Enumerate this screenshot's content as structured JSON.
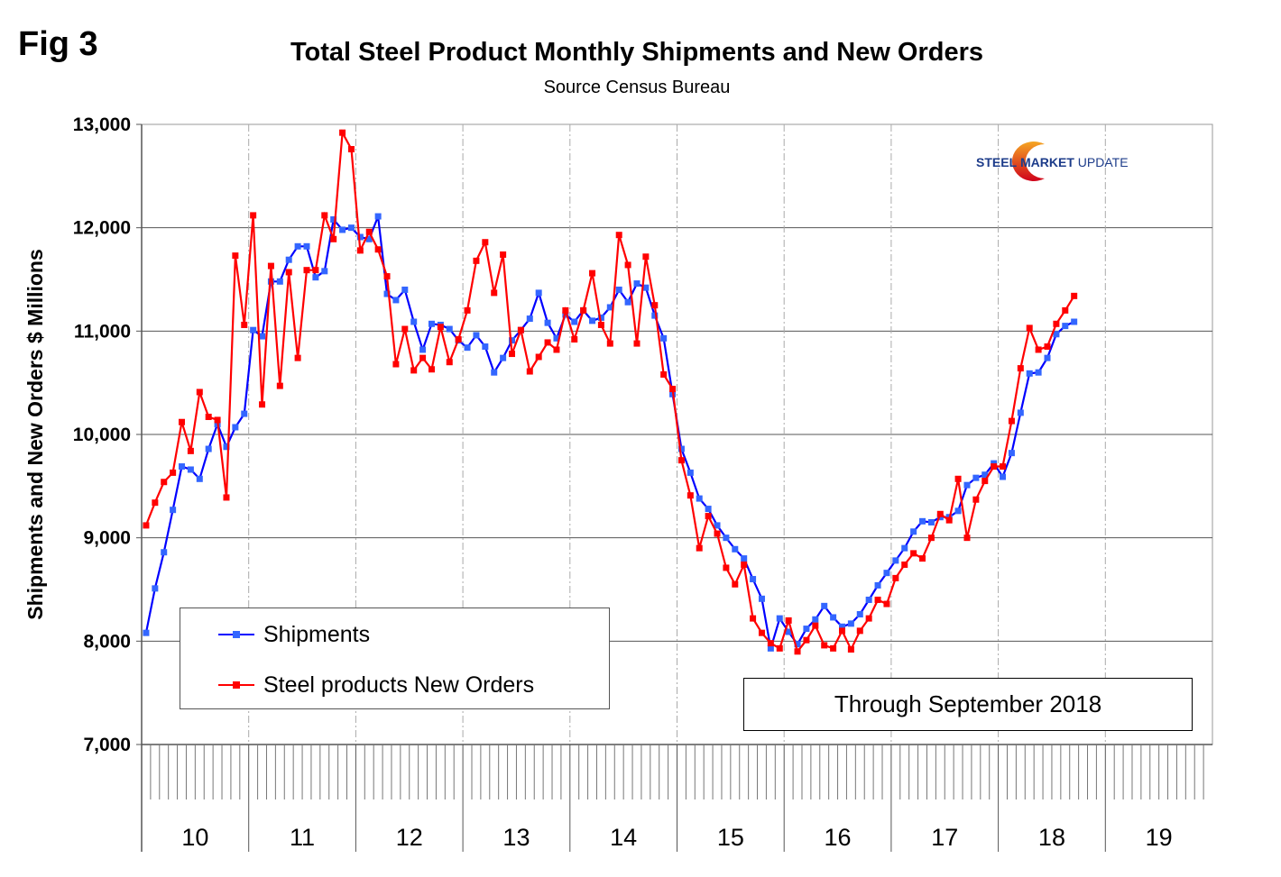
{
  "figure_label": "Fig 3",
  "source_text": "Source Census Bureau",
  "logo": {
    "word1": "STEEL",
    "word2": "MARKET",
    "word3": "UPDATE",
    "colors": {
      "text": "#1d3c8a",
      "arc_start": "#f5a623",
      "arc_end": "#d0021b"
    }
  },
  "annotation": "Through September 2018",
  "chart_data": {
    "type": "line",
    "title": "Total Steel Product Monthly Shipments and New Orders",
    "subtitle": "Source Census Bureau",
    "xlabel": "",
    "ylabel": "Shipments and New Orders $ Millions",
    "ylim": [
      7000,
      13000
    ],
    "yticks": [
      7000,
      8000,
      9000,
      10000,
      11000,
      12000,
      13000
    ],
    "ytick_labels": [
      "7,000",
      "8,000",
      "9,000",
      "10,000",
      "11,000",
      "12,000",
      "13,000"
    ],
    "x_years": [
      "10",
      "11",
      "12",
      "13",
      "14",
      "15",
      "16",
      "17",
      "18",
      "19"
    ],
    "x_start": "2010-01",
    "x_end_axis": "2019-12",
    "frequency": "monthly",
    "grid": {
      "horizontal": true,
      "vertical_year_dashed": true
    },
    "legend_position": "bottom-left",
    "series": [
      {
        "name": "Shipments",
        "color": "#0000ff",
        "marker_color": "#3366ff",
        "values": [
          8080,
          8510,
          8860,
          9270,
          9690,
          9660,
          9570,
          9860,
          10100,
          9880,
          10070,
          10200,
          11010,
          10950,
          11480,
          11480,
          11690,
          11820,
          11820,
          11520,
          11580,
          12080,
          11980,
          12000,
          11910,
          11890,
          12110,
          11360,
          11300,
          11400,
          11090,
          10820,
          11070,
          11060,
          11020,
          10910,
          10840,
          10960,
          10850,
          10600,
          10740,
          10910,
          11010,
          11120,
          11370,
          11080,
          10930,
          11160,
          11090,
          11200,
          11100,
          11130,
          11230,
          11400,
          11280,
          11460,
          11420,
          11150,
          10930,
          10390,
          9860,
          9630,
          9380,
          9280,
          9120,
          9000,
          8890,
          8800,
          8600,
          8410,
          7930,
          8220,
          8090,
          7970,
          8120,
          8210,
          8340,
          8230,
          8140,
          8170,
          8260,
          8400,
          8540,
          8660,
          8780,
          8900,
          9060,
          9160,
          9150,
          9200,
          9200,
          9260,
          9510,
          9580,
          9610,
          9720,
          9590,
          9820,
          10210,
          10590,
          10600,
          10740,
          10970,
          11050,
          11090
        ]
      },
      {
        "name": "Steel products New Orders",
        "color": "#ff0000",
        "marker_color": "#ff0000",
        "values": [
          9120,
          9340,
          9540,
          9630,
          10120,
          9840,
          10410,
          10170,
          10140,
          9390,
          11730,
          11060,
          12120,
          10290,
          11630,
          10470,
          11570,
          10740,
          11590,
          11590,
          12120,
          11890,
          12920,
          12760,
          11780,
          11960,
          11790,
          11530,
          10680,
          11020,
          10620,
          10740,
          10630,
          11040,
          10700,
          10920,
          11200,
          11680,
          11860,
          11370,
          11740,
          10780,
          11010,
          10610,
          10750,
          10890,
          10820,
          11200,
          10920,
          11200,
          11560,
          11060,
          10880,
          11930,
          11640,
          10880,
          11720,
          11250,
          10580,
          10440,
          9750,
          9410,
          8900,
          9210,
          9040,
          8710,
          8550,
          8740,
          8220,
          8080,
          7980,
          7930,
          8200,
          7900,
          8010,
          8150,
          7960,
          7930,
          8100,
          7920,
          8100,
          8220,
          8400,
          8360,
          8610,
          8740,
          8850,
          8800,
          9000,
          9230,
          9170,
          9570,
          9000,
          9370,
          9550,
          9690,
          9690,
          10130,
          10640,
          11030,
          10820,
          10850,
          11070,
          11200,
          11340
        ]
      }
    ]
  }
}
